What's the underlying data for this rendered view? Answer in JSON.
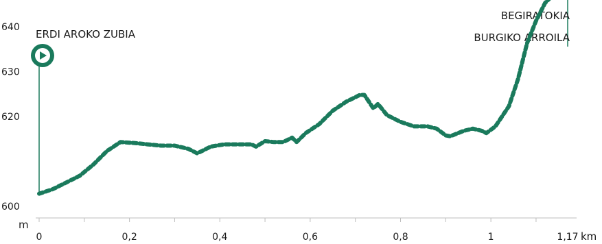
{
  "chart_data": {
    "type": "line",
    "xlabel": "km",
    "ylabel": "m",
    "xlim": [
      0,
      1.17
    ],
    "ylim": [
      600,
      650
    ],
    "x_ticks": [
      {
        "value": 0,
        "label": "0"
      },
      {
        "value": 0.2,
        "label": "0,2"
      },
      {
        "value": 0.4,
        "label": "0,4"
      },
      {
        "value": 0.6,
        "label": "0,6"
      },
      {
        "value": 0.8,
        "label": "0,8"
      },
      {
        "value": 1,
        "label": "1"
      },
      {
        "value": 1.17,
        "label": "1,17"
      }
    ],
    "y_ticks": [
      {
        "value": 600,
        "label": "600"
      },
      {
        "value": 620,
        "label": "620"
      },
      {
        "value": 630,
        "label": "630"
      },
      {
        "value": 640,
        "label": "640"
      }
    ],
    "series": [
      {
        "x": [
          0.0,
          0.03,
          0.06,
          0.09,
          0.12,
          0.15,
          0.18,
          0.21,
          0.24,
          0.27,
          0.3,
          0.33,
          0.35,
          0.38,
          0.41,
          0.44,
          0.47,
          0.48,
          0.5,
          0.52,
          0.54,
          0.56,
          0.57,
          0.59,
          0.62,
          0.65,
          0.68,
          0.71,
          0.72,
          0.74,
          0.75,
          0.77,
          0.8,
          0.83,
          0.86,
          0.88,
          0.9,
          0.91,
          0.94,
          0.96,
          0.98,
          0.99,
          1.01,
          1.04,
          1.06,
          1.08,
          1.1,
          1.12,
          1.14,
          1.15,
          1.17
        ],
        "values": [
          602.5,
          603.5,
          605,
          606.5,
          609,
          612,
          614,
          613.8,
          613.5,
          613.2,
          613.2,
          612.5,
          611.5,
          613,
          613.5,
          613.5,
          613.5,
          613,
          614.2,
          614,
          614,
          615,
          614,
          616,
          618,
          621,
          623,
          624.5,
          624.5,
          621.5,
          622.5,
          620,
          618.5,
          617.5,
          617.5,
          617,
          615.5,
          615.3,
          616.5,
          617,
          616.5,
          616,
          617.5,
          622,
          628,
          636,
          641,
          645,
          647,
          646.5,
          646.5
        ]
      }
    ],
    "color": "#1a7a5c",
    "annotations": [
      {
        "x": 0,
        "lines": [
          "ERDI AROKO ZUBIA"
        ],
        "icon": "play-start-icon"
      },
      {
        "x": 1.17,
        "lines": [
          "BEGIRATOKIA",
          "BURGIKO ARROILA"
        ]
      }
    ]
  }
}
